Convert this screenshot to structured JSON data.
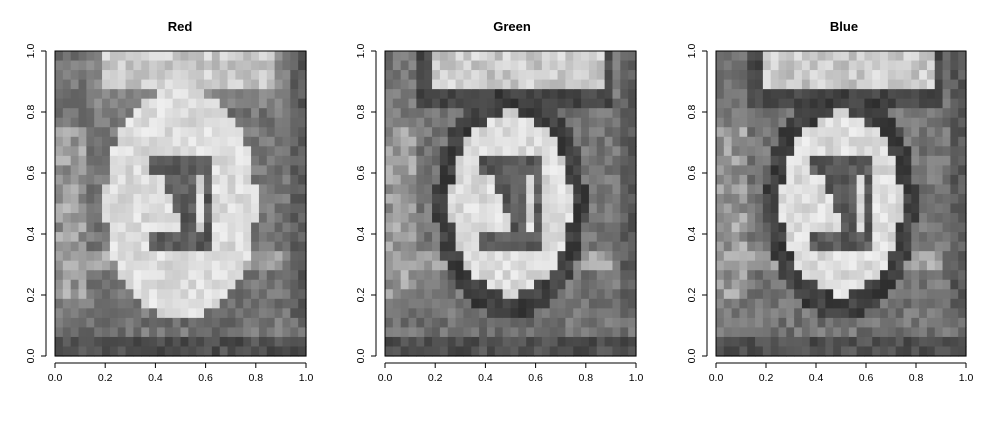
{
  "chart_data": [
    {
      "type": "heatmap",
      "title": "Red",
      "xlabel": "",
      "ylabel": "",
      "xlim": [
        0,
        1
      ],
      "ylim": [
        0,
        1
      ],
      "x_ticks": [
        "0.0",
        "0.2",
        "0.4",
        "0.6",
        "0.8",
        "1.0"
      ],
      "y_ticks": [
        "0.0",
        "0.2",
        "0.4",
        "0.6",
        "0.8",
        "1.0"
      ],
      "grid": false,
      "colormap": "grayscale",
      "grid_size": [
        32,
        32
      ],
      "ring_color": "#e2e2e2"
    },
    {
      "type": "heatmap",
      "title": "Green",
      "xlabel": "",
      "ylabel": "",
      "xlim": [
        0,
        1
      ],
      "ylim": [
        0,
        1
      ],
      "x_ticks": [
        "0.0",
        "0.2",
        "0.4",
        "0.6",
        "0.8",
        "1.0"
      ],
      "y_ticks": [
        "0.0",
        "0.2",
        "0.4",
        "0.6",
        "0.8",
        "1.0"
      ],
      "grid": false,
      "colormap": "grayscale",
      "grid_size": [
        32,
        32
      ],
      "ring_color": "#3a3a3a"
    },
    {
      "type": "heatmap",
      "title": "Blue",
      "xlabel": "",
      "ylabel": "",
      "xlim": [
        0,
        1
      ],
      "ylim": [
        0,
        1
      ],
      "x_ticks": [
        "0.0",
        "0.2",
        "0.4",
        "0.6",
        "0.8",
        "1.0"
      ],
      "y_ticks": [
        "0.0",
        "0.2",
        "0.4",
        "0.6",
        "0.8",
        "1.0"
      ],
      "grid": false,
      "colormap": "grayscale",
      "grid_size": [
        32,
        32
      ],
      "ring_color": "#454545"
    }
  ]
}
